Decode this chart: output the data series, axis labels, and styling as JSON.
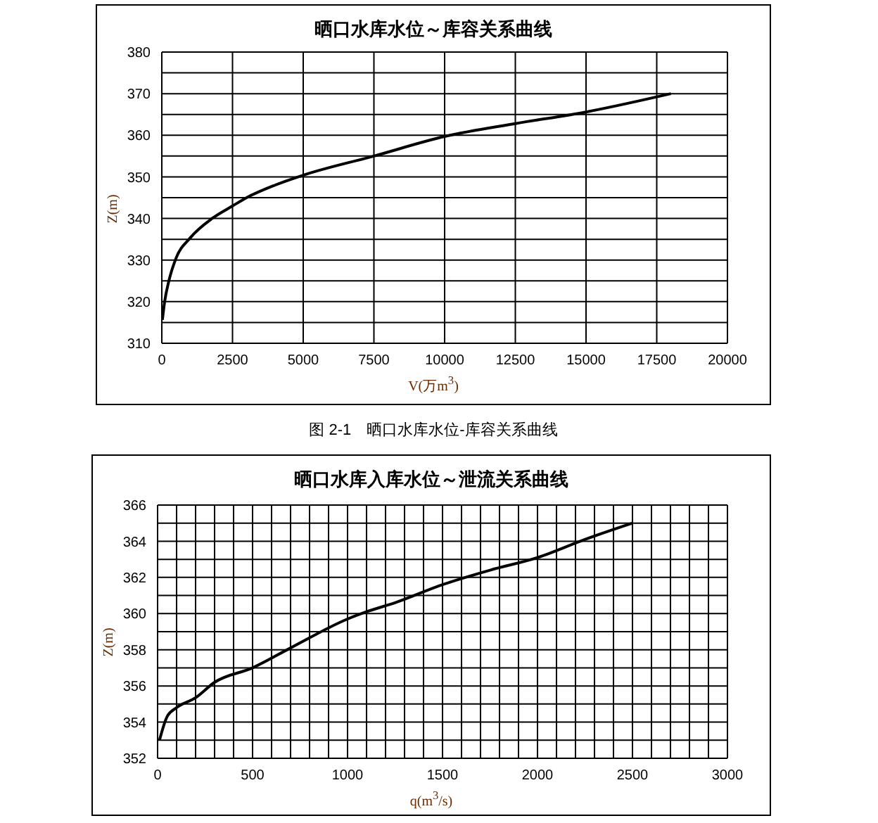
{
  "chart_data": [
    {
      "type": "line",
      "title": "晒口水库水位～库容关系曲线",
      "xlabel": "V(万m$^{3}$)",
      "ylabel": "Z(m)",
      "annotations": [
        "图 2-1　晒口水库水位-库容关系曲线"
      ],
      "x": [
        20,
        100,
        250,
        500,
        1000,
        1800,
        2500,
        3000,
        4000,
        5000,
        7500,
        10000,
        12500,
        15000,
        18000
      ],
      "series": [
        {
          "color": "#000000",
          "values": [
            315.6,
            320,
            325,
            330.4,
            335.3,
            340.1,
            343,
            345,
            348,
            350.4,
            355,
            359.7,
            362.8,
            365.6,
            370
          ]
        }
      ],
      "xlim": [
        0,
        20000
      ],
      "xticks": [
        0,
        2500,
        5000,
        7500,
        10000,
        12500,
        15000,
        17500,
        20000
      ],
      "ylim": [
        310,
        380
      ],
      "yticks": [
        310,
        {
          "value": 315,
          "label": null
        },
        320,
        {
          "value": 325,
          "label": null
        },
        330,
        {
          "value": 335,
          "label": null
        },
        340,
        {
          "value": 345,
          "label": null
        },
        350,
        {
          "value": 355,
          "label": null
        },
        360,
        {
          "value": 365,
          "label": null
        },
        370,
        {
          "value": 375,
          "label": null
        },
        380
      ],
      "grid": true,
      "marker": "none",
      "line_style": "solid"
    },
    {
      "type": "line",
      "title": "晒口水库入库水位～泄流关系曲线",
      "xlabel": "q(m$^{3}$/s)",
      "ylabel": "Z(m)",
      "x": [
        10,
        50,
        100,
        200,
        300,
        500,
        700,
        1000,
        1100,
        1250,
        1500,
        1750,
        2000,
        2250,
        2500
      ],
      "series": [
        {
          "color": "#000000",
          "values": [
            353,
            354.3,
            354.8,
            355.35,
            356.2,
            357,
            358.1,
            359.7,
            360.1,
            360.6,
            361.6,
            362.4,
            363.1,
            364.1,
            365
          ]
        }
      ],
      "xlim": [
        0,
        3000
      ],
      "xticks": [
        0,
        {
          "value": 100,
          "label": null
        },
        {
          "value": 200,
          "label": null
        },
        {
          "value": 300,
          "label": null
        },
        {
          "value": 400,
          "label": null
        },
        500,
        {
          "value": 600,
          "label": null
        },
        {
          "value": 700,
          "label": null
        },
        {
          "value": 800,
          "label": null
        },
        {
          "value": 900,
          "label": null
        },
        1000,
        {
          "value": 1100,
          "label": null
        },
        {
          "value": 1200,
          "label": null
        },
        {
          "value": 1300,
          "label": null
        },
        {
          "value": 1400,
          "label": null
        },
        1500,
        {
          "value": 1600,
          "label": null
        },
        {
          "value": 1700,
          "label": null
        },
        {
          "value": 1800,
          "label": null
        },
        {
          "value": 1900,
          "label": null
        },
        2000,
        {
          "value": 2100,
          "label": null
        },
        {
          "value": 2200,
          "label": null
        },
        {
          "value": 2300,
          "label": null
        },
        {
          "value": 2400,
          "label": null
        },
        2500,
        {
          "value": 2600,
          "label": null
        },
        {
          "value": 2700,
          "label": null
        },
        {
          "value": 2800,
          "label": null
        },
        {
          "value": 2900,
          "label": null
        },
        3000
      ],
      "ylim": [
        352,
        366
      ],
      "yticks": [
        352,
        {
          "value": 353,
          "label": null
        },
        354,
        {
          "value": 355,
          "label": null
        },
        356,
        {
          "value": 357,
          "label": null
        },
        358,
        {
          "value": 359,
          "label": null
        },
        360,
        {
          "value": 361,
          "label": null
        },
        362,
        {
          "value": 363,
          "label": null
        },
        364,
        {
          "value": 365,
          "label": null
        },
        366
      ],
      "grid": true,
      "marker": "none",
      "line_style": "solid"
    }
  ]
}
